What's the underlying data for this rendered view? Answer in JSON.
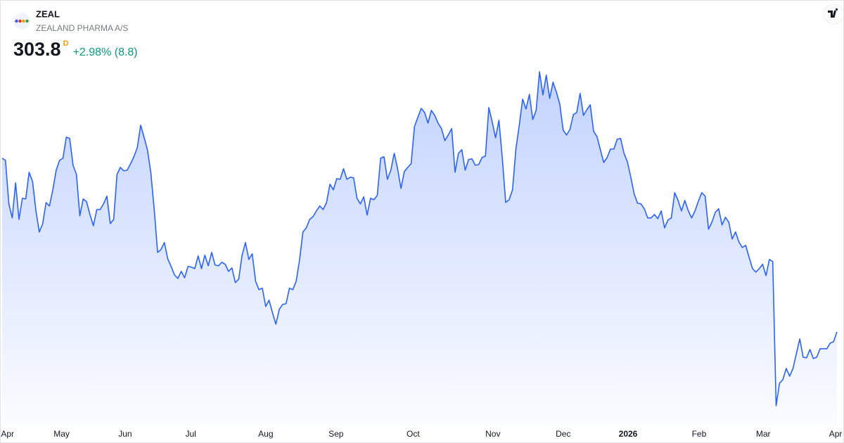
{
  "chart_data": {
    "type": "area",
    "title": "ZEAL",
    "subtitle": "ZEALAND PHARMA A/S",
    "last_price": 303.8,
    "interval": "D",
    "change_label": "+2.98% (8.8)",
    "color": "#2962ff",
    "values": [
      459.4,
      457.5,
      418.5,
      405.9,
      437.4,
      404.6,
      423.5,
      422.9,
      446.8,
      438.6,
      412.2,
      393.3,
      400.8,
      419.7,
      416.6,
      431.1,
      448.7,
      457.5,
      459.4,
      478.3,
      477.1,
      453.1,
      444.9,
      407.8,
      422.9,
      420.4,
      409.0,
      398.9,
      413.4,
      413.4,
      418.5,
      425.4,
      400.8,
      404.6,
      444.9,
      451.2,
      448.1,
      448.7,
      454.4,
      460.7,
      468.9,
      489.0,
      478.3,
      467.0,
      446.8,
      413.4,
      375.0,
      377.5,
      383.8,
      369.3,
      362.4,
      354.8,
      351.7,
      358.0,
      352.3,
      362.4,
      361.8,
      360.5,
      371.8,
      360.5,
      372.5,
      363.0,
      375.0,
      363.7,
      363.0,
      366.2,
      364.3,
      358.0,
      361.1,
      347.9,
      351.1,
      372.5,
      383.8,
      368.7,
      373.7,
      349.2,
      341.6,
      342.9,
      326.5,
      332.2,
      320.8,
      310.7,
      324.0,
      328.4,
      329.0,
      342.9,
      341.6,
      349.2,
      368.1,
      393.3,
      397.0,
      404.6,
      407.1,
      412.2,
      416.6,
      413.4,
      419.7,
      436.1,
      431.1,
      441.1,
      440.5,
      450.0,
      440.5,
      442.4,
      441.8,
      423.5,
      418.5,
      424.8,
      408.4,
      423.5,
      422.2,
      426.0,
      459.4,
      460.7,
      440.5,
      448.7,
      463.8,
      450.0,
      432.3,
      447.4,
      451.2,
      454.4,
      487.8,
      496.0,
      504.1,
      500.4,
      490.9,
      502.3,
      497.8,
      490.9,
      485.9,
      475.2,
      480.2,
      485.9,
      446.8,
      463.8,
      467.0,
      448.7,
      458.2,
      458.8,
      453.1,
      453.7,
      460.0,
      461.3,
      504.8,
      492.2,
      477.7,
      493.4,
      459.4,
      419.7,
      422.2,
      431.1,
      467.6,
      489.0,
      512.3,
      503.5,
      516.7,
      494.1,
      502.3,
      536.9,
      516.1,
      533.8,
      513.0,
      527.5,
      518.6,
      507.9,
      484.6,
      480.2,
      485.2,
      498.5,
      500.4,
      517.4,
      497.8,
      502.9,
      507.3,
      483.4,
      478.9,
      467.0,
      455.6,
      460.0,
      467.6,
      467.6,
      476.4,
      477.1,
      463.8,
      456.3,
      442.4,
      427.3,
      419.1,
      418.5,
      414.1,
      405.9,
      405.9,
      409.0,
      405.2,
      412.2,
      397.0,
      404.0,
      405.9,
      428.5,
      421.6,
      412.2,
      421.6,
      412.2,
      405.9,
      412.2,
      421.0,
      428.5,
      425.4,
      395.8,
      402.1,
      410.9,
      414.1,
      399.6,
      406.5,
      402.1,
      387.0,
      393.3,
      384.4,
      379.4,
      381.3,
      370.6,
      360.5,
      357.4,
      360.5,
      364.3,
      354.2,
      368.7,
      366.8,
      237.6,
      257.8,
      261.0,
      271.0,
      264.1,
      271.0,
      284.3,
      297.5,
      281.1,
      280.5,
      288.0,
      279.9,
      281.1,
      288.7,
      288.7,
      288.7,
      293.7,
      295.0,
      303.8
    ],
    "xticks": [
      {
        "value": 1.6,
        "label": "Apr"
      },
      {
        "value": 17.6,
        "label": "May"
      },
      {
        "value": 36.4,
        "label": "Jun"
      },
      {
        "value": 55.8,
        "label": "Jul"
      },
      {
        "value": 78,
        "label": "Aug"
      },
      {
        "value": 98.8,
        "label": "Sep"
      },
      {
        "value": 121.6,
        "label": "Oct"
      },
      {
        "value": 145.2,
        "label": "Nov"
      },
      {
        "value": 166,
        "label": "Dec"
      },
      {
        "value": 185.2,
        "label": "2026"
      },
      {
        "value": 206.2,
        "label": "Feb"
      },
      {
        "value": 225.2,
        "label": "Mar"
      },
      {
        "value": 246.6,
        "label": "Apr"
      }
    ]
  }
}
